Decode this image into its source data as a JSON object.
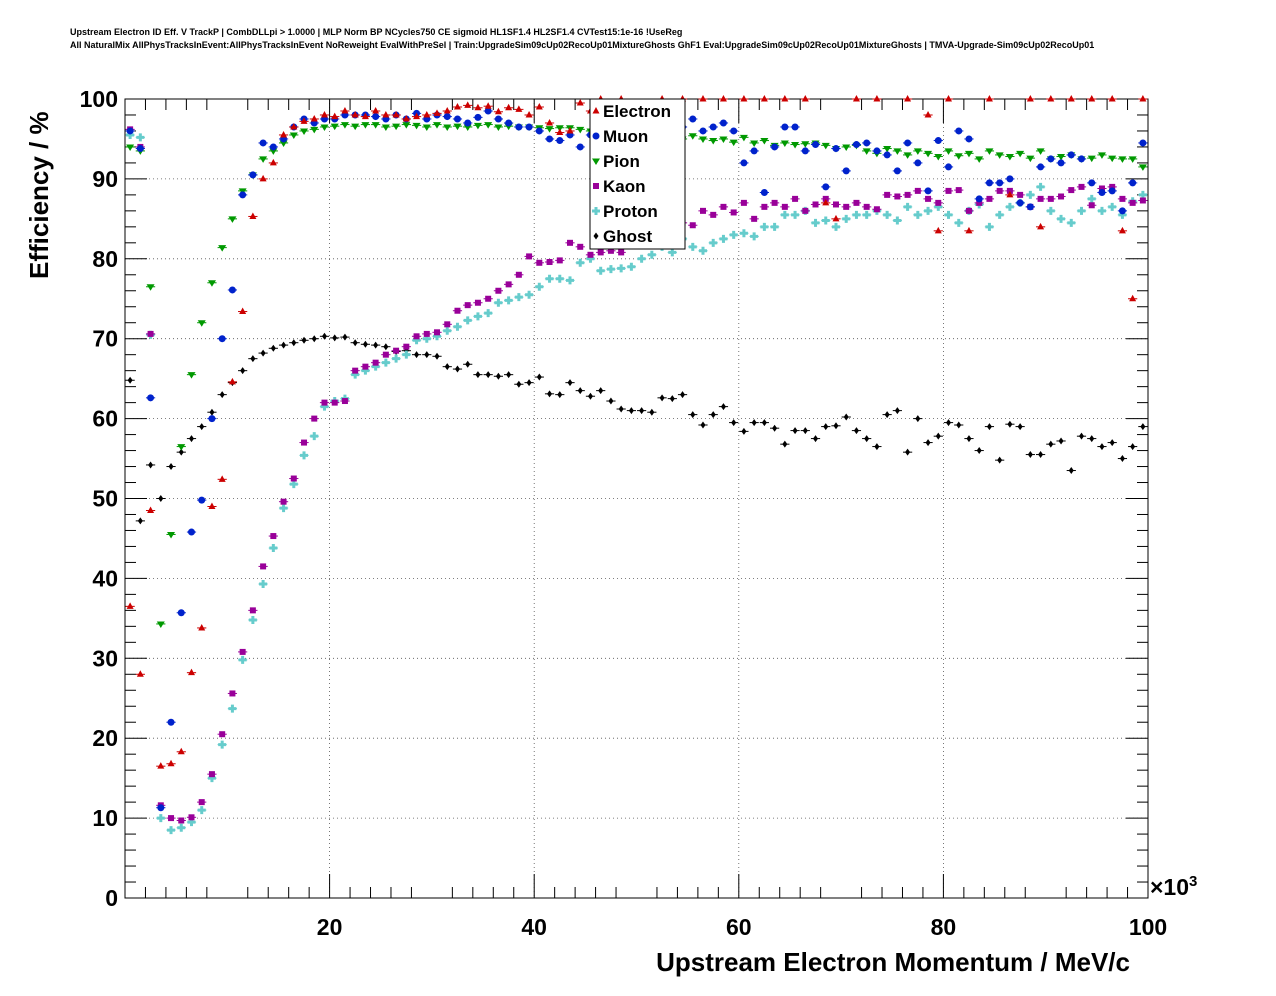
{
  "chart_data": {
    "type": "scatter",
    "title_lines": [
      "Upstream Electron ID Eff. V TrackP | CombDLLpi > 1.0000 | MLP Norm BP NCycles750 CE sigmoid HL1SF1.4 HL2SF1.4 CVTest15:1e-16 !UseReg",
      "All NaturalMix AllPhysTracksInEvent:AllPhysTracksInEvent NoReweight EvalWithPreSel | Train:UpgradeSim09cUp02RecoUp01MixtureGhosts GhF1 Eval:UpgradeSim09cUp02RecoUp01MixtureGhosts | TMVA-Upgrade-Sim09cUp02RecoUp01"
    ],
    "xlabel": "Upstream Electron Momentum / MeV/c",
    "ylabel": "Efficiency / %",
    "x_multiplier_label": "×10",
    "x_multiplier_exp": "3",
    "xlim": [
      0,
      100
    ],
    "ylim": [
      0,
      100
    ],
    "x_ticks": [
      "20",
      "40",
      "60",
      "80",
      "100"
    ],
    "y_ticks": [
      "0",
      "10",
      "20",
      "30",
      "40",
      "50",
      "60",
      "70",
      "80",
      "90",
      "100"
    ],
    "grid": true,
    "legend_position": "top-center",
    "series": [
      {
        "name": "Electron",
        "color": "#cc0000",
        "marker": "triangle-up",
        "x": [
          0.5,
          1.5,
          2.5,
          3.5,
          4.5,
          5.5,
          6.5,
          7.5,
          8.5,
          9.5,
          10.5,
          11.5,
          12.5,
          13.5,
          14.5,
          15.5,
          16.5,
          17.5,
          18.5,
          19.5,
          20.5,
          21.5,
          22.5,
          23.5,
          24.5,
          25.5,
          26.5,
          27.5,
          28.5,
          29.5,
          30.5,
          31.5,
          32.5,
          33.5,
          34.5,
          35.5,
          36.5,
          37.5,
          38.5,
          39.5,
          40.5,
          41.5,
          42.5,
          43.5,
          44.5,
          45.5,
          46.5,
          48.5,
          52.5,
          54.5,
          56.5,
          58.5,
          60.5,
          62.5,
          64.5,
          66.5,
          68.5,
          69.5,
          71.5,
          73.5,
          76.5,
          78.5,
          79.5,
          80.5,
          82.5,
          84.5,
          86.5,
          88.5,
          89.5,
          90.5,
          92.5,
          94.5,
          96.5,
          97.5,
          98.5,
          99.5
        ],
        "y": [
          36.5,
          28,
          48.5,
          16.5,
          16.8,
          18.3,
          28.2,
          33.8,
          49,
          52.4,
          64.6,
          73.4,
          85.3,
          90,
          92,
          95.5,
          96.5,
          97.2,
          97.5,
          98,
          97.8,
          98.5,
          98,
          97.8,
          98.5,
          98,
          98,
          97.5,
          97.8,
          98,
          98.2,
          98.5,
          99,
          99.2,
          98.9,
          99.1,
          98.4,
          98.9,
          98.7,
          98,
          99,
          97,
          95.8,
          96,
          99.5,
          98.5,
          100,
          100,
          100,
          100,
          100,
          100,
          100,
          100,
          100,
          100,
          87,
          85,
          100,
          100,
          100,
          98,
          83.5,
          100,
          83.5,
          100,
          88,
          100,
          84,
          100,
          100,
          100,
          100,
          83.5,
          75,
          100
        ]
      },
      {
        "name": "Muon",
        "color": "#0022cc",
        "marker": "circle",
        "x": [
          0.5,
          1.5,
          2.5,
          3.5,
          4.5,
          5.5,
          6.5,
          7.5,
          8.5,
          9.5,
          10.5,
          11.5,
          12.5,
          13.5,
          14.5,
          15.5,
          16.5,
          17.5,
          18.5,
          19.5,
          20.5,
          21.5,
          22.5,
          23.5,
          24.5,
          25.5,
          26.5,
          27.5,
          28.5,
          29.5,
          30.5,
          31.5,
          32.5,
          33.5,
          34.5,
          35.5,
          36.5,
          37.5,
          38.5,
          39.5,
          40.5,
          41.5,
          42.5,
          43.5,
          44.5,
          45.5,
          46.5,
          47.5,
          48.5,
          49.5,
          50.5,
          51.5,
          52.5,
          53.5,
          54.5,
          55.5,
          56.5,
          57.5,
          58.5,
          59.5,
          60.5,
          61.5,
          62.5,
          63.5,
          64.5,
          65.5,
          66.5,
          67.5,
          68.5,
          69.5,
          70.5,
          71.5,
          72.5,
          73.5,
          74.5,
          75.5,
          76.5,
          77.5,
          78.5,
          79.5,
          80.5,
          81.5,
          82.5,
          83.5,
          84.5,
          85.5,
          86.5,
          87.5,
          88.5,
          89.5,
          90.5,
          91.5,
          92.5,
          93.5,
          94.5,
          95.5,
          96.5,
          97.5,
          98.5,
          99.5
        ],
        "y": [
          96,
          93.8,
          62.6,
          11.3,
          22,
          35.7,
          45.8,
          49.8,
          60,
          70,
          76.1,
          88,
          90.5,
          94.5,
          94,
          95,
          96.5,
          97.5,
          97,
          97.5,
          97.5,
          98,
          98,
          98,
          97.8,
          97.5,
          98,
          97.5,
          98.2,
          97.5,
          98,
          97.8,
          97.5,
          97,
          97.7,
          98.5,
          97.5,
          97,
          96.5,
          96.5,
          96,
          95,
          94.8,
          95.5,
          94,
          95.5,
          96,
          95.5,
          96,
          96.2,
          95.5,
          95.8,
          96,
          96.5,
          96.5,
          97.5,
          96,
          96.5,
          97,
          96,
          92,
          93.5,
          88.3,
          94,
          96.5,
          96.5,
          93.5,
          94.3,
          89,
          93.8,
          91,
          94.3,
          94.5,
          93.5,
          93,
          91,
          94.5,
          92,
          88.5,
          94.8,
          91.5,
          96,
          95,
          87.5,
          89.5,
          89.5,
          90,
          87,
          86.5,
          91.5,
          92.5,
          92,
          93,
          92.5,
          89.5,
          88.3,
          88.5,
          86,
          89.5,
          94.5
        ]
      },
      {
        "name": "Pion",
        "color": "#009900",
        "marker": "triangle-down",
        "x": [
          0.5,
          1.5,
          2.5,
          3.5,
          4.5,
          5.5,
          6.5,
          7.5,
          8.5,
          9.5,
          10.5,
          11.5,
          12.5,
          13.5,
          14.5,
          15.5,
          16.5,
          17.5,
          18.5,
          19.5,
          20.5,
          21.5,
          22.5,
          23.5,
          24.5,
          25.5,
          26.5,
          27.5,
          28.5,
          29.5,
          30.5,
          31.5,
          32.5,
          33.5,
          34.5,
          35.5,
          36.5,
          37.5,
          38.5,
          39.5,
          40.5,
          41.5,
          42.5,
          43.5,
          44.5,
          45.5,
          46.5,
          47.5,
          48.5,
          49.5,
          50.5,
          51.5,
          52.5,
          53.5,
          54.5,
          55.5,
          56.5,
          57.5,
          58.5,
          59.5,
          60.5,
          61.5,
          62.5,
          63.5,
          64.5,
          65.5,
          66.5,
          67.5,
          68.5,
          69.5,
          70.5,
          71.5,
          72.5,
          73.5,
          74.5,
          75.5,
          76.5,
          77.5,
          78.5,
          79.5,
          80.5,
          81.5,
          82.5,
          83.5,
          84.5,
          85.5,
          86.5,
          87.5,
          88.5,
          89.5,
          90.5,
          91.5,
          92.5,
          93.5,
          94.5,
          95.5,
          96.5,
          97.5,
          98.5,
          99.5
        ],
        "y": [
          94,
          93.5,
          76.5,
          34.3,
          45.5,
          56.5,
          65.5,
          72,
          77,
          81.4,
          85,
          88.5,
          90.5,
          92.5,
          93.5,
          94.5,
          95.5,
          96,
          96.2,
          96.5,
          96.6,
          96.8,
          96.6,
          96.8,
          96.8,
          96.5,
          96.6,
          96.8,
          96.7,
          96.5,
          96.8,
          96.5,
          96.6,
          96.5,
          96.7,
          96.8,
          96.5,
          96.6,
          96.5,
          96.5,
          96.4,
          96.3,
          96.4,
          96.4,
          96.2,
          96,
          96.1,
          95.8,
          95.6,
          95.8,
          95.6,
          95.4,
          95.4,
          95.2,
          95,
          95.4,
          95,
          94.8,
          95,
          94.6,
          95.2,
          94.5,
          94.8,
          94.2,
          94.5,
          94.3,
          94.4,
          94.5,
          94.2,
          93.8,
          94,
          94.2,
          93.5,
          93.2,
          93.8,
          93.5,
          93,
          93.5,
          93.2,
          92.8,
          93.5,
          92.9,
          93.2,
          92.5,
          93.5,
          93,
          92.8,
          93.2,
          92.6,
          93.5,
          92.5,
          92.8,
          93,
          92.5,
          92.6,
          93,
          92.6,
          92.5,
          92.5,
          91.5
        ]
      },
      {
        "name": "Kaon",
        "color": "#990099",
        "marker": "square",
        "x": [
          0.5,
          1.5,
          2.5,
          3.5,
          4.5,
          5.5,
          6.5,
          7.5,
          8.5,
          9.5,
          10.5,
          11.5,
          12.5,
          13.5,
          14.5,
          15.5,
          16.5,
          17.5,
          18.5,
          19.5,
          20.5,
          21.5,
          22.5,
          23.5,
          24.5,
          25.5,
          26.5,
          27.5,
          28.5,
          29.5,
          30.5,
          31.5,
          32.5,
          33.5,
          34.5,
          35.5,
          36.5,
          37.5,
          38.5,
          39.5,
          40.5,
          41.5,
          42.5,
          43.5,
          44.5,
          45.5,
          46.5,
          47.5,
          48.5,
          49.5,
          50.5,
          51.5,
          52.5,
          53.5,
          54.5,
          55.5,
          56.5,
          57.5,
          58.5,
          59.5,
          60.5,
          61.5,
          62.5,
          63.5,
          64.5,
          65.5,
          66.5,
          67.5,
          68.5,
          69.5,
          70.5,
          71.5,
          72.5,
          73.5,
          74.5,
          75.5,
          76.5,
          77.5,
          78.5,
          79.5,
          80.5,
          81.5,
          82.5,
          83.5,
          84.5,
          85.5,
          86.5,
          87.5,
          88.5,
          89.5,
          90.5,
          91.5,
          92.5,
          93.5,
          94.5,
          95.5,
          96.5,
          97.5,
          98.5,
          99.5
        ],
        "y": [
          96.2,
          94,
          70.6,
          11.6,
          10,
          9.7,
          10.1,
          12,
          15.5,
          20.5,
          25.6,
          30.8,
          36,
          41.5,
          45.3,
          49.6,
          52.5,
          57,
          60,
          62,
          62,
          62.2,
          66,
          66.5,
          67,
          68,
          68.5,
          69,
          70.3,
          70.6,
          70.8,
          71.8,
          73.5,
          74.2,
          74.5,
          75,
          76,
          76.8,
          78,
          80.3,
          79.5,
          79.6,
          79.8,
          82,
          81.5,
          80.5,
          80.8,
          81,
          80.8,
          82,
          82,
          83.8,
          82.8,
          83.8,
          84.5,
          84.2,
          86,
          85.5,
          86.5,
          85.8,
          87,
          85,
          86.5,
          87,
          86.5,
          87.5,
          86,
          86.8,
          87.5,
          86.8,
          86.5,
          87,
          86.5,
          86.2,
          88,
          87.8,
          88,
          88.5,
          87.5,
          87,
          88.5,
          88.6,
          86,
          87,
          87.5,
          88.5,
          88.5,
          88,
          86.5,
          87.5,
          87.5,
          87.8,
          88.6,
          89,
          86.7,
          88.8,
          89,
          87.5,
          87,
          87.3
        ]
      },
      {
        "name": "Proton",
        "color": "#66cccc",
        "marker": "cross",
        "x": [
          0.5,
          1.5,
          2.5,
          3.5,
          4.5,
          5.5,
          6.5,
          7.5,
          8.5,
          9.5,
          10.5,
          11.5,
          12.5,
          13.5,
          14.5,
          15.5,
          16.5,
          17.5,
          18.5,
          19.5,
          20.5,
          21.5,
          22.5,
          23.5,
          24.5,
          25.5,
          26.5,
          27.5,
          28.5,
          29.5,
          30.5,
          31.5,
          32.5,
          33.5,
          34.5,
          35.5,
          36.5,
          37.5,
          38.5,
          39.5,
          40.5,
          41.5,
          42.5,
          43.5,
          44.5,
          45.5,
          46.5,
          47.5,
          48.5,
          49.5,
          50.5,
          51.5,
          52.5,
          53.5,
          54.5,
          55.5,
          56.5,
          57.5,
          58.5,
          59.5,
          60.5,
          61.5,
          62.5,
          63.5,
          64.5,
          65.5,
          66.5,
          67.5,
          68.5,
          69.5,
          70.5,
          71.5,
          72.5,
          73.5,
          74.5,
          75.5,
          76.5,
          77.5,
          78.5,
          79.5,
          80.5,
          81.5,
          82.5,
          83.5,
          84.5,
          85.5,
          86.5,
          87.5,
          88.5,
          89.5,
          90.5,
          91.5,
          92.5,
          93.5,
          94.5,
          95.5,
          96.5,
          97.5,
          98.5,
          99.5
        ],
        "y": [
          95.5,
          95.2,
          70.5,
          10,
          8.5,
          8.8,
          9.5,
          11,
          15,
          19.2,
          23.7,
          29.8,
          34.8,
          39.3,
          43.8,
          48.8,
          51.8,
          55.4,
          57.8,
          61.5,
          62.2,
          62.5,
          65.5,
          66,
          66.5,
          67,
          67.5,
          68,
          69.8,
          70,
          70.3,
          71,
          71.5,
          72.3,
          72.8,
          73.2,
          74.5,
          74.8,
          75.2,
          75.5,
          76.5,
          77.5,
          77.5,
          77.3,
          79.5,
          80,
          78.5,
          78.7,
          78.8,
          79,
          80,
          80.5,
          81.5,
          80.8,
          82.5,
          81.5,
          81,
          82,
          82.5,
          83,
          83.2,
          82.8,
          84,
          84,
          85.5,
          85.5,
          86,
          84.5,
          84.8,
          84,
          85,
          85.5,
          85.5,
          86,
          85.5,
          84.8,
          86.5,
          85.5,
          86,
          86.5,
          85.5,
          84.5,
          86,
          86.8,
          84,
          85.5,
          86.5,
          87,
          88,
          89,
          86,
          85,
          84.5,
          86,
          87.5,
          86,
          86.5,
          85.5,
          87.2,
          88
        ]
      },
      {
        "name": "Ghost",
        "color": "#000000",
        "marker": "diamond",
        "x": [
          0.5,
          1.5,
          2.5,
          3.5,
          4.5,
          5.5,
          6.5,
          7.5,
          8.5,
          9.5,
          10.5,
          11.5,
          12.5,
          13.5,
          14.5,
          15.5,
          16.5,
          17.5,
          18.5,
          19.5,
          20.5,
          21.5,
          22.5,
          23.5,
          24.5,
          25.5,
          26.5,
          27.5,
          28.5,
          29.5,
          30.5,
          31.5,
          32.5,
          33.5,
          34.5,
          35.5,
          36.5,
          37.5,
          38.5,
          39.5,
          40.5,
          41.5,
          42.5,
          43.5,
          44.5,
          45.5,
          46.5,
          47.5,
          48.5,
          49.5,
          50.5,
          51.5,
          52.5,
          53.5,
          54.5,
          55.5,
          56.5,
          57.5,
          58.5,
          59.5,
          60.5,
          61.5,
          62.5,
          63.5,
          64.5,
          65.5,
          66.5,
          67.5,
          68.5,
          69.5,
          70.5,
          71.5,
          72.5,
          73.5,
          74.5,
          75.5,
          76.5,
          77.5,
          78.5,
          79.5,
          80.5,
          81.5,
          82.5,
          83.5,
          84.5,
          85.5,
          86.5,
          87.5,
          88.5,
          89.5,
          90.5,
          91.5,
          92.5,
          93.5,
          94.5,
          95.5,
          96.5,
          97.5,
          98.5,
          99.5
        ],
        "y": [
          64.8,
          47.2,
          54.2,
          50,
          54,
          55.8,
          57.5,
          59,
          60.8,
          63,
          64.5,
          66,
          67.5,
          68.2,
          68.8,
          69.2,
          69.5,
          69.8,
          70,
          70.3,
          70.1,
          70.2,
          69.5,
          69.3,
          69.2,
          69,
          68.4,
          68.5,
          68,
          68,
          67.8,
          66.5,
          66.2,
          66.8,
          65.5,
          65.5,
          65.3,
          65.5,
          64.3,
          64.5,
          65.2,
          63.1,
          63,
          64.5,
          63.5,
          62.8,
          63.5,
          62.2,
          61.2,
          61,
          61,
          60.8,
          62.6,
          62.5,
          63,
          60.5,
          59.2,
          60.5,
          61.5,
          59.5,
          58.4,
          59.5,
          59.5,
          58.8,
          56.8,
          58.5,
          58.5,
          57.5,
          59,
          59.1,
          60.2,
          58.5,
          57.5,
          56.5,
          60.5,
          61,
          55.8,
          60,
          57,
          57.8,
          59.5,
          59.2,
          57.5,
          56,
          59,
          54.8,
          59.3,
          59,
          55.5,
          55.5,
          56.8,
          57.2,
          53.5,
          57.8,
          57.5,
          56.5,
          57,
          55,
          56.5,
          59
        ]
      }
    ]
  }
}
